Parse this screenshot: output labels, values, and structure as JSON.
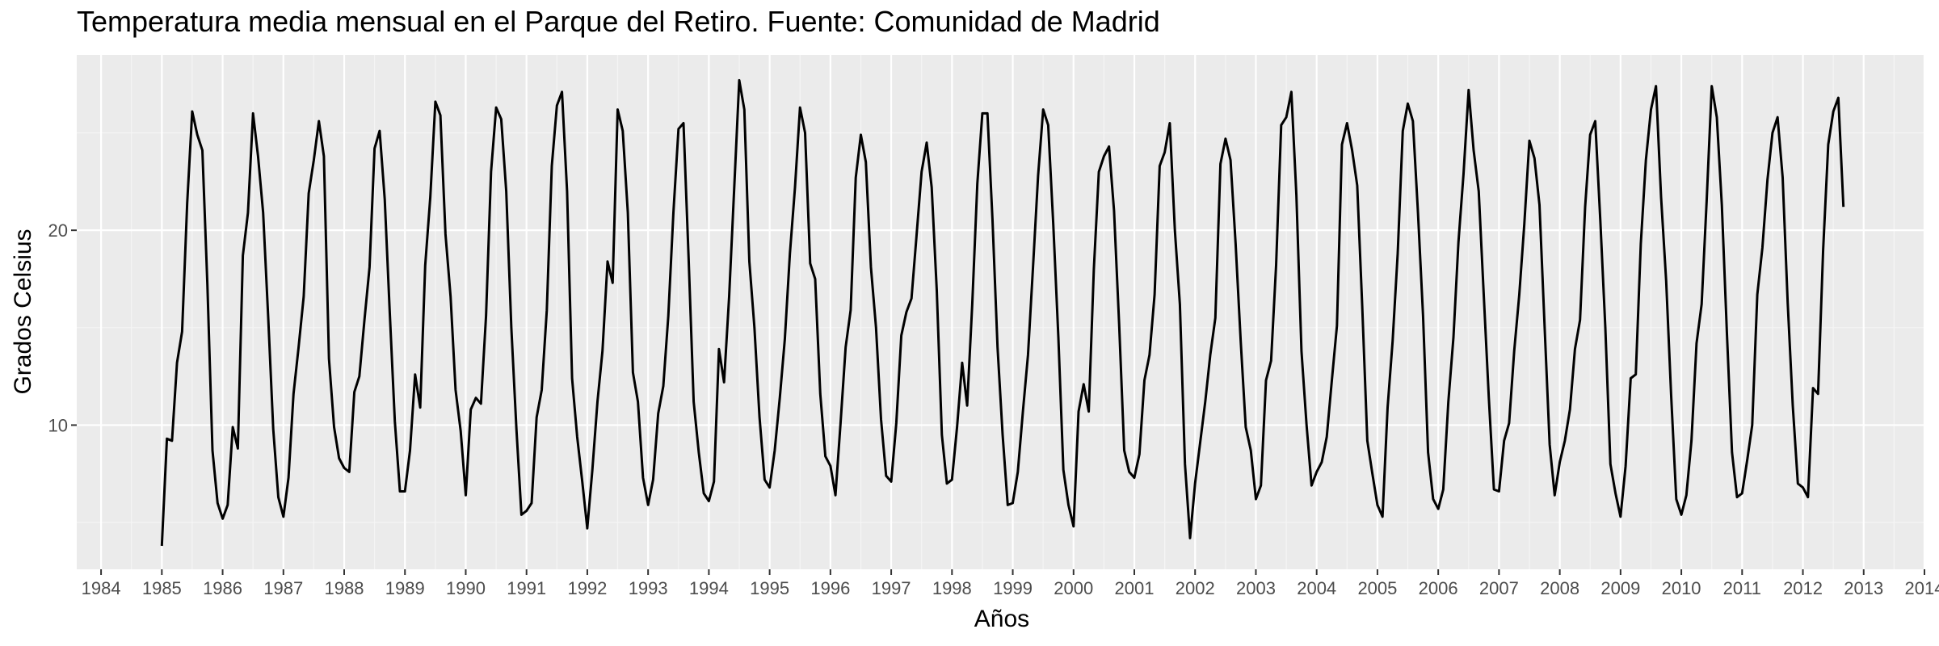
{
  "chart_data": {
    "type": "line",
    "title": "Temperatura media mensual en el Parque del Retiro. Fuente: Comunidad de Madrid",
    "xlabel": "Años",
    "ylabel": "Grados Celsius",
    "x_ticks": [
      "1984",
      "1985",
      "1986",
      "1987",
      "1988",
      "1989",
      "1990",
      "1991",
      "1992",
      "1993",
      "1994",
      "1995",
      "1996",
      "1997",
      "1998",
      "1999",
      "2000",
      "2001",
      "2002",
      "2003",
      "2004",
      "2005",
      "2006",
      "2007",
      "2008",
      "2009",
      "2010",
      "2011",
      "2012",
      "2013",
      "2014"
    ],
    "y_ticks": [
      "10",
      "20"
    ],
    "xlim": [
      1983.6,
      2014.0
    ],
    "ylim": [
      2.6,
      29.0
    ],
    "grid": true,
    "colors": {
      "panel": "#ebebeb",
      "grid_major": "#ffffff",
      "grid_minor": "#f5f5f5",
      "line": "#000000",
      "tick": "#4d4d4d"
    },
    "series": [
      {
        "start_year": 1985,
        "start_month": 1,
        "frequency": "monthly",
        "values": [
          3.8,
          9.3,
          9.2,
          13.2,
          14.8,
          21.4,
          26.1,
          24.9,
          24.1,
          17.2,
          8.7,
          6.0,
          5.2,
          5.9,
          9.9,
          8.8,
          18.7,
          20.9,
          26.0,
          23.8,
          20.9,
          15.5,
          9.8,
          6.3,
          5.3,
          7.3,
          11.6,
          14.0,
          16.6,
          21.9,
          23.6,
          25.6,
          23.8,
          13.4,
          9.9,
          8.3,
          7.8,
          7.6,
          11.7,
          12.5,
          15.4,
          18.1,
          24.2,
          25.1,
          21.6,
          15.8,
          10.2,
          6.6,
          6.6,
          8.7,
          12.6,
          10.9,
          18.2,
          21.7,
          26.6,
          25.9,
          19.8,
          16.6,
          11.8,
          9.7,
          6.4,
          10.8,
          11.4,
          11.1,
          15.6,
          23.0,
          26.3,
          25.7,
          22.0,
          15.0,
          9.8,
          5.4,
          5.6,
          6.0,
          10.4,
          11.8,
          15.9,
          23.3,
          26.4,
          27.1,
          22.0,
          12.4,
          9.4,
          7.1,
          4.7,
          7.7,
          11.2,
          13.8,
          18.4,
          17.3,
          26.2,
          25.1,
          20.9,
          12.7,
          11.2,
          7.3,
          5.9,
          7.2,
          10.6,
          12.0,
          15.6,
          20.9,
          25.2,
          25.5,
          18.6,
          11.2,
          8.6,
          6.5,
          6.1,
          7.1,
          13.9,
          12.2,
          16.6,
          22.1,
          27.7,
          26.2,
          18.4,
          15.0,
          10.4,
          7.2,
          6.8,
          8.7,
          11.4,
          14.4,
          18.8,
          22.2,
          26.3,
          25.0,
          18.3,
          17.5,
          11.6,
          8.4,
          7.9,
          6.4,
          10.1,
          14.0,
          15.9,
          22.7,
          24.9,
          23.5,
          18.1,
          15.0,
          10.3,
          7.4,
          7.1,
          10.1,
          14.6,
          15.8,
          16.5,
          19.7,
          23.0,
          24.5,
          22.2,
          16.9,
          9.5,
          7.0,
          7.2,
          9.9,
          13.2,
          11.0,
          16.2,
          22.4,
          26.0,
          26.0,
          20.5,
          14.0,
          9.5,
          5.9,
          6.0,
          7.6,
          10.7,
          13.6,
          18.1,
          22.8,
          26.2,
          25.4,
          20.3,
          14.5,
          7.7,
          5.9,
          4.8,
          10.7,
          12.1,
          10.7,
          18.0,
          23.0,
          23.8,
          24.3,
          21.0,
          15.2,
          8.7,
          7.6,
          7.3,
          8.5,
          12.3,
          13.6,
          16.7,
          23.3,
          24.0,
          25.5,
          20.0,
          16.2,
          8.0,
          4.2,
          7.0,
          9.1,
          11.2,
          13.6,
          15.5,
          23.4,
          24.7,
          23.6,
          19.3,
          14.3,
          9.9,
          8.7,
          6.2,
          6.9,
          12.3,
          13.3,
          18.2,
          25.4,
          25.8,
          27.1,
          21.8,
          13.8,
          10.0,
          6.9,
          7.6,
          8.1,
          9.4,
          12.3,
          15.1,
          24.4,
          25.5,
          24.1,
          22.3,
          16.1,
          9.2,
          7.5,
          5.9,
          5.3,
          10.9,
          14.3,
          18.8,
          25.1,
          26.5,
          25.6,
          20.9,
          15.6,
          8.6,
          6.2,
          5.7,
          6.7,
          11.2,
          14.5,
          19.4,
          22.9,
          27.2,
          24.1,
          22.0,
          16.6,
          11.4,
          6.7,
          6.6,
          9.2,
          10.1,
          13.8,
          16.7,
          20.3,
          24.6,
          23.7,
          21.3,
          15.1,
          9.0,
          6.4,
          8.1,
          9.2,
          10.8,
          13.9,
          15.4,
          21.2,
          24.9,
          25.6,
          20.5,
          15.0,
          8.0,
          6.5,
          5.3,
          7.9,
          12.4,
          12.6,
          19.3,
          23.6,
          26.2,
          27.4,
          21.7,
          17.4,
          11.5,
          6.2,
          5.4,
          6.4,
          9.2,
          14.2,
          16.2,
          21.5,
          27.4,
          25.8,
          21.3,
          14.7,
          8.6,
          6.3,
          6.5,
          8.2,
          10.0,
          16.7,
          19.1,
          22.6,
          25.0,
          25.8,
          22.7,
          16.3,
          11.0,
          7.0,
          6.8,
          6.3,
          11.9,
          11.6,
          19.0,
          24.4,
          26.1,
          26.8,
          21.2
        ]
      }
    ]
  }
}
